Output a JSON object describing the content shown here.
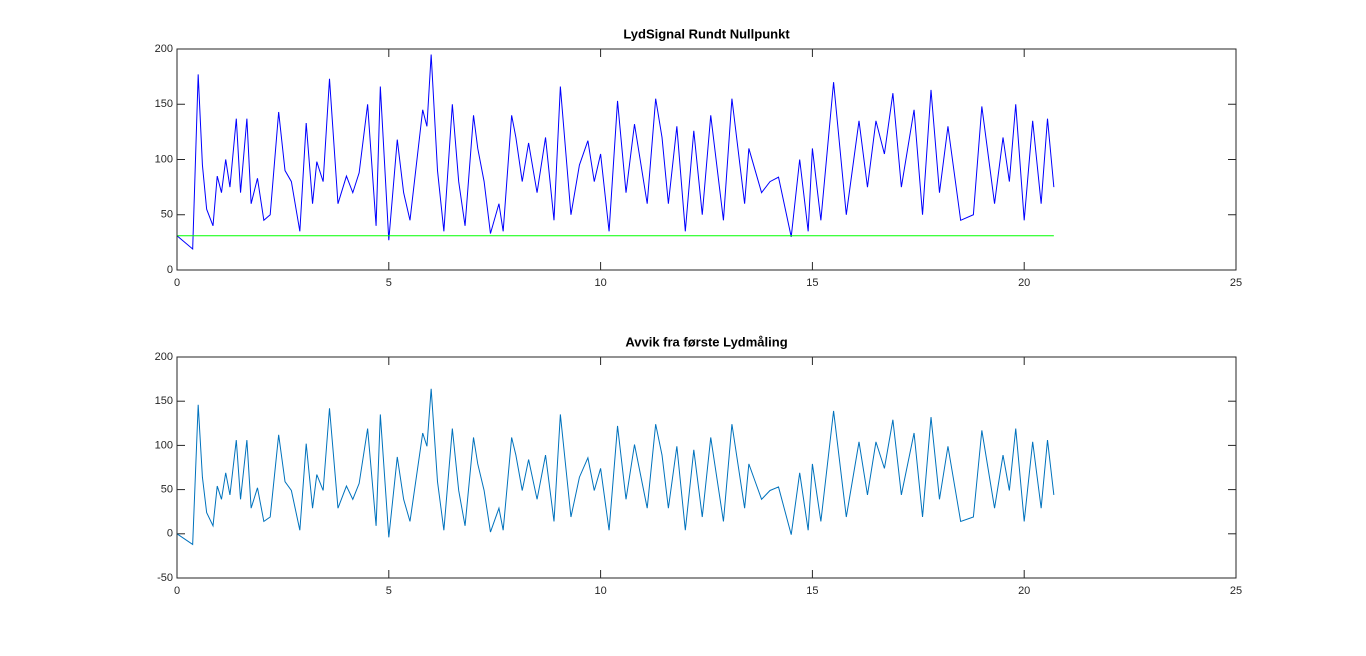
{
  "chart_data": [
    {
      "type": "line",
      "title": "LydSignal Rundt Nullpunkt",
      "xlim": [
        0,
        25
      ],
      "xticks": [
        0,
        5,
        10,
        15,
        20,
        25
      ],
      "ylim": [
        0,
        200
      ],
      "yticks": [
        0,
        50,
        100,
        150,
        200
      ],
      "series": [
        {
          "color": "#0000ff",
          "x": [
            0,
            0.37,
            0.5,
            0.6,
            0.7,
            0.85,
            0.95,
            1.05,
            1.15,
            1.25,
            1.4,
            1.5,
            1.65,
            1.75,
            1.9,
            2.05,
            2.2,
            2.4,
            2.55,
            2.7,
            2.9,
            3.05,
            3.2,
            3.3,
            3.45,
            3.6,
            3.8,
            4.0,
            4.15,
            4.3,
            4.5,
            4.7,
            4.8,
            5.0,
            5.2,
            5.35,
            5.5,
            5.8,
            5.9,
            6.0,
            6.15,
            6.3,
            6.5,
            6.65,
            6.8,
            7.0,
            7.1,
            7.25,
            7.4,
            7.6,
            7.7,
            7.9,
            8.0,
            8.15,
            8.3,
            8.5,
            8.7,
            8.9,
            9.05,
            9.3,
            9.5,
            9.7,
            9.85,
            10.0,
            10.2,
            10.4,
            10.6,
            10.8,
            11.1,
            11.3,
            11.45,
            11.6,
            11.8,
            12.0,
            12.2,
            12.4,
            12.6,
            12.9,
            13.1,
            13.4,
            13.5,
            13.65,
            13.8,
            14.0,
            14.2,
            14.5,
            14.7,
            14.9,
            15.0,
            15.2,
            15.5,
            15.8,
            16.1,
            16.3,
            16.5,
            16.7,
            16.9,
            17.1,
            17.4,
            17.6,
            17.8,
            18.0,
            18.2,
            18.5,
            18.8,
            19.0,
            19.3,
            19.5,
            19.65,
            19.8,
            20.0,
            20.2,
            20.4,
            20.55,
            20.7
          ],
          "values": [
            31,
            19,
            177,
            95,
            55,
            40,
            85,
            70,
            100,
            75,
            137,
            70,
            137,
            60,
            83,
            45,
            50,
            143,
            90,
            80,
            35,
            133,
            60,
            98,
            80,
            173,
            60,
            85,
            70,
            88,
            150,
            40,
            166,
            27,
            118,
            70,
            45,
            145,
            130,
            195,
            90,
            35,
            150,
            80,
            40,
            140,
            110,
            80,
            33,
            60,
            35,
            140,
            120,
            80,
            115,
            70,
            120,
            45,
            166,
            50,
            95,
            117,
            80,
            105,
            35,
            153,
            70,
            132,
            60,
            155,
            120,
            60,
            130,
            35,
            126,
            50,
            140,
            45,
            155,
            60,
            110,
            90,
            70,
            80,
            84,
            30,
            100,
            35,
            110,
            45,
            170,
            50,
            135,
            75,
            135,
            105,
            160,
            75,
            145,
            50,
            163,
            70,
            130,
            45,
            50,
            148,
            60,
            120,
            80,
            150,
            45,
            135,
            60,
            137,
            75
          ]
        },
        {
          "color": "#00ff00",
          "x": [
            0,
            0,
            20.7
          ],
          "values": [
            0,
            31,
            31
          ]
        }
      ]
    },
    {
      "type": "line",
      "title": "Avvik fra første Lydmåling",
      "xlim": [
        0,
        25
      ],
      "xticks": [
        0,
        5,
        10,
        15,
        20,
        25
      ],
      "ylim": [
        -50,
        200
      ],
      "yticks": [
        -50,
        0,
        50,
        100,
        150,
        200
      ],
      "series": [
        {
          "color": "#0072bd",
          "x": [
            0,
            0.37,
            0.5,
            0.6,
            0.7,
            0.85,
            0.95,
            1.05,
            1.15,
            1.25,
            1.4,
            1.5,
            1.65,
            1.75,
            1.9,
            2.05,
            2.2,
            2.4,
            2.55,
            2.7,
            2.9,
            3.05,
            3.2,
            3.3,
            3.45,
            3.6,
            3.8,
            4.0,
            4.15,
            4.3,
            4.5,
            4.7,
            4.8,
            5.0,
            5.2,
            5.35,
            5.5,
            5.8,
            5.9,
            6.0,
            6.15,
            6.3,
            6.5,
            6.65,
            6.8,
            7.0,
            7.1,
            7.25,
            7.4,
            7.6,
            7.7,
            7.9,
            8.0,
            8.15,
            8.3,
            8.5,
            8.7,
            8.9,
            9.05,
            9.3,
            9.5,
            9.7,
            9.85,
            10.0,
            10.2,
            10.4,
            10.6,
            10.8,
            11.1,
            11.3,
            11.45,
            11.6,
            11.8,
            12.0,
            12.2,
            12.4,
            12.6,
            12.9,
            13.1,
            13.4,
            13.5,
            13.65,
            13.8,
            14.0,
            14.2,
            14.5,
            14.7,
            14.9,
            15.0,
            15.2,
            15.5,
            15.8,
            16.1,
            16.3,
            16.5,
            16.7,
            16.9,
            17.1,
            17.4,
            17.6,
            17.8,
            18.0,
            18.2,
            18.5,
            18.8,
            19.0,
            19.3,
            19.5,
            19.65,
            19.8,
            20.0,
            20.2,
            20.4,
            20.55,
            20.7
          ],
          "values": [
            0,
            -12,
            146,
            64,
            24,
            9,
            54,
            39,
            69,
            44,
            106,
            39,
            106,
            29,
            52,
            14,
            19,
            112,
            59,
            49,
            4,
            102,
            29,
            67,
            49,
            142,
            29,
            54,
            39,
            57,
            119,
            9,
            135,
            -4,
            87,
            39,
            14,
            114,
            99,
            164,
            59,
            4,
            119,
            49,
            9,
            109,
            79,
            49,
            2,
            29,
            4,
            109,
            89,
            49,
            84,
            39,
            89,
            14,
            135,
            19,
            64,
            86,
            49,
            74,
            4,
            122,
            39,
            101,
            29,
            124,
            89,
            29,
            99,
            4,
            95,
            19,
            109,
            14,
            124,
            29,
            79,
            59,
            39,
            49,
            53,
            -1,
            69,
            4,
            79,
            14,
            139,
            19,
            104,
            44,
            104,
            74,
            129,
            44,
            114,
            19,
            132,
            39,
            99,
            14,
            19,
            117,
            29,
            89,
            49,
            119,
            14,
            104,
            29,
            106,
            44
          ]
        }
      ]
    }
  ]
}
